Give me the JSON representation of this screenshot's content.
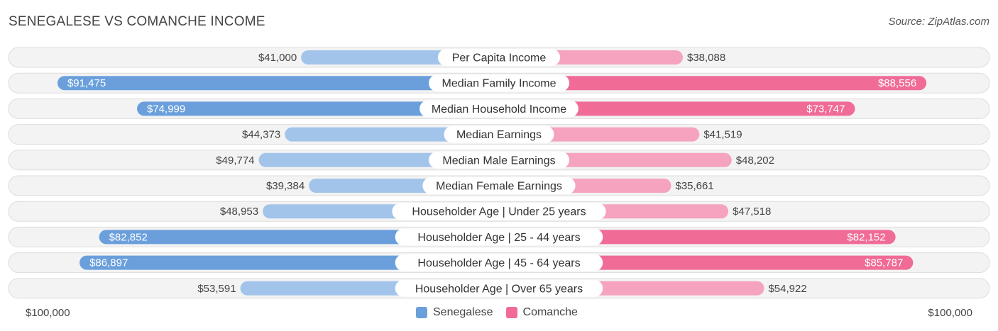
{
  "title": "SENEGALESE VS COMANCHE INCOME",
  "source": "Source: ZipAtlas.com",
  "colors": {
    "left_strong": "#6a9fdc",
    "left_light": "#a3c4ea",
    "right_strong": "#f06b96",
    "right_light": "#f5a3bf"
  },
  "axis": {
    "left_label": "$100,000",
    "right_label": "$100,000"
  },
  "legend": [
    {
      "label": "Senegalese",
      "color": "#6a9fdc"
    },
    {
      "label": "Comanche",
      "color": "#f06b96"
    }
  ],
  "chart_data": {
    "type": "bar",
    "orientation": "diverging-horizontal",
    "xlim": [
      0,
      100000
    ],
    "categories": [
      "Per Capita Income",
      "Median Family Income",
      "Median Household Income",
      "Median Earnings",
      "Median Male Earnings",
      "Median Female Earnings",
      "Householder Age | Under 25 years",
      "Householder Age | 25 - 44 years",
      "Householder Age | 45 - 64 years",
      "Householder Age | Over 65 years"
    ],
    "series": [
      {
        "name": "Senegalese",
        "values": [
          41000,
          91475,
          74999,
          44373,
          49774,
          39384,
          48953,
          82852,
          86897,
          53591
        ],
        "labels": [
          "$41,000",
          "$91,475",
          "$74,999",
          "$44,373",
          "$49,774",
          "$39,384",
          "$48,953",
          "$82,852",
          "$86,897",
          "$53,591"
        ]
      },
      {
        "name": "Comanche",
        "values": [
          38088,
          88556,
          73747,
          41519,
          48202,
          35661,
          47518,
          82152,
          85787,
          54922
        ],
        "labels": [
          "$38,088",
          "$88,556",
          "$73,747",
          "$41,519",
          "$48,202",
          "$35,661",
          "$47,518",
          "$82,152",
          "$85,787",
          "$54,922"
        ]
      }
    ]
  }
}
